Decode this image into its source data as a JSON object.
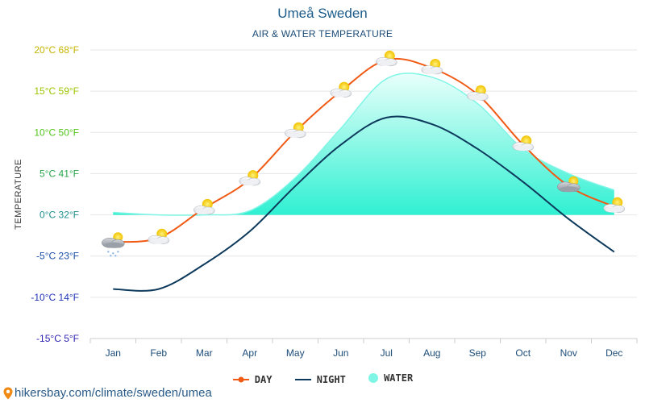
{
  "chart_data": {
    "type": "line",
    "title": "Umeå Sweden",
    "subtitle": "AIR & WATER TEMPERATURE",
    "ylabel": "TEMPERATURE",
    "ylim": [
      -15,
      20
    ],
    "yticks": [
      {
        "value": 20,
        "label": "20°C 68°F",
        "color": "#c7b500"
      },
      {
        "value": 15,
        "label": "15°C 59°F",
        "color": "#9cc400"
      },
      {
        "value": 10,
        "label": "10°C 50°F",
        "color": "#52c41a"
      },
      {
        "value": 5,
        "label": "5°C 41°F",
        "color": "#2aa64c"
      },
      {
        "value": 0,
        "label": "0°C 32°F",
        "color": "#1e8f8f"
      },
      {
        "value": -5,
        "label": "-5°C 23°F",
        "color": "#1b4fa8"
      },
      {
        "value": -10,
        "label": "-10°C 14°F",
        "color": "#1f33b5"
      },
      {
        "value": -15,
        "label": "-15°C 5°F",
        "color": "#2a1fb0"
      }
    ],
    "categories": [
      "Jan",
      "Feb",
      "Mar",
      "Apr",
      "May",
      "Jun",
      "Jul",
      "Aug",
      "Sep",
      "Oct",
      "Nov",
      "Dec"
    ],
    "series": [
      {
        "name": "DAY",
        "color": "#f05a14",
        "values": [
          -3.3,
          -2.8,
          0.8,
          4.3,
          10.1,
          15.0,
          18.8,
          17.8,
          14.6,
          8.5,
          3.5,
          1.0
        ]
      },
      {
        "name": "NIGHT",
        "color": "#0d3a5c",
        "values": [
          -9.0,
          -9.0,
          -6.0,
          -2.0,
          3.5,
          8.5,
          11.8,
          11.0,
          8.0,
          4.0,
          -0.5,
          -4.5
        ]
      },
      {
        "name": "WATER",
        "color": "#66f0dd",
        "values": [
          0.3,
          0.0,
          0.0,
          0.5,
          4.5,
          10.5,
          16.5,
          16.7,
          13.5,
          8.0,
          5.0,
          3.0
        ]
      }
    ],
    "weather_icons": [
      "snow-cloud-icon",
      "sun-cloud-icon",
      "sun-cloud-icon",
      "sun-cloud-icon",
      "sun-cloud-icon",
      "sun-cloud-icon",
      "sun-cloud-icon",
      "sun-cloud-icon",
      "sun-cloud-icon",
      "sun-cloud-icon",
      "rain-cloud-icon",
      "sun-cloud-icon"
    ]
  },
  "legend": {
    "day": "DAY",
    "night": "NIGHT",
    "water": "WATER"
  },
  "footer": {
    "text": "hikersbay.com/climate/sweden/umea"
  }
}
